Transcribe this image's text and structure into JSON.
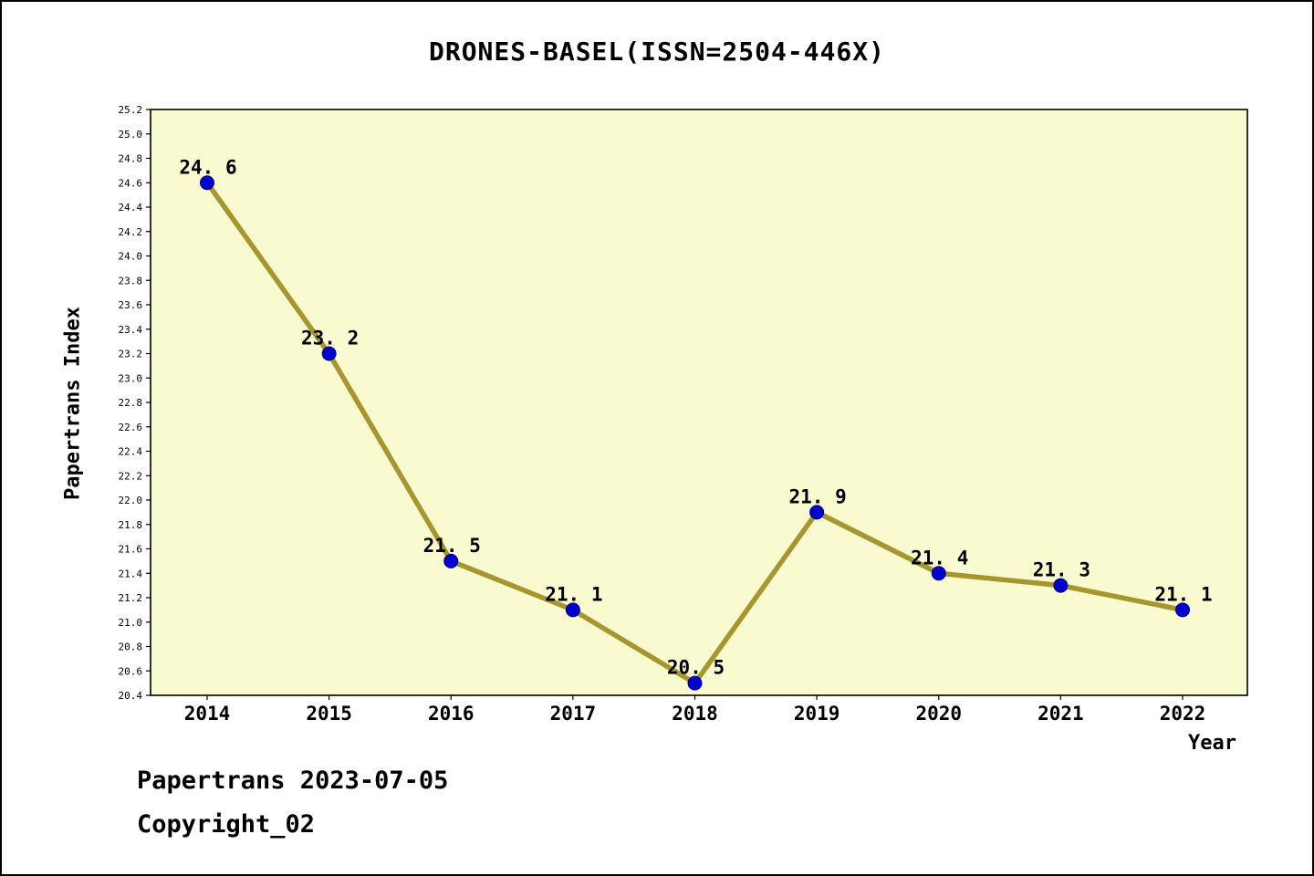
{
  "chart_data": {
    "type": "line",
    "title": "DRONES-BASEL(ISSN=2504-446X)",
    "xlabel": "Year",
    "ylabel": "Papertrans Index",
    "categories": [
      "2014",
      "2015",
      "2016",
      "2017",
      "2018",
      "2019",
      "2020",
      "2021",
      "2022"
    ],
    "values": [
      24.6,
      23.2,
      21.5,
      21.1,
      20.5,
      21.9,
      21.4,
      21.3,
      21.1
    ],
    "point_labels": [
      "24. 6",
      "23. 2",
      "21. 5",
      "21. 1",
      "20. 5",
      "21. 9",
      "21. 4",
      "21. 3",
      "21. 1"
    ],
    "ylim": [
      20.4,
      25.2
    ],
    "ytick_step": 0.2,
    "grid": false,
    "legend": "none",
    "colors": {
      "line": "#A6962D",
      "marker_fill": "#0000CD",
      "marker_edge": "#00008B",
      "plot_bg": "#FAFAD0",
      "axis": "#000000",
      "text": "#000000"
    }
  },
  "footer": {
    "line1": "Papertrans 2023-07-05",
    "line2": "Copyright_02"
  }
}
